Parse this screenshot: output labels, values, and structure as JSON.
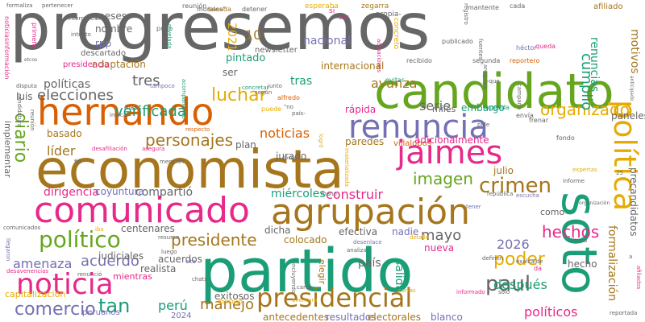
{
  "colors": {
    "green": "#1b9e77",
    "orange": "#d95f02",
    "purple": "#7570b3",
    "pink": "#e7298a",
    "lime": "#66a61e",
    "gold": "#e6ab02",
    "brown": "#a6761d",
    "gray": "#666666"
  },
  "words": [
    {
      "id": "w1",
      "text": "progresemos",
      "color": "gray"
    },
    {
      "id": "w2",
      "text": "economista",
      "color": "brown"
    },
    {
      "id": "w3",
      "text": "partido",
      "color": "green"
    },
    {
      "id": "w4",
      "text": "candidato",
      "color": "lime"
    },
    {
      "id": "w5",
      "text": "soto",
      "color": "green"
    },
    {
      "id": "w6",
      "text": "hernando",
      "color": "orange"
    },
    {
      "id": "w7",
      "text": "comunicado",
      "color": "pink"
    },
    {
      "id": "w8",
      "text": "agrupación",
      "color": "brown"
    },
    {
      "id": "w9",
      "text": "noticia",
      "color": "pink"
    },
    {
      "id": "w10",
      "text": "renuncia",
      "color": "purple"
    },
    {
      "id": "w11",
      "text": "político",
      "color": "lime"
    },
    {
      "id": "w12",
      "text": "presidencial",
      "color": "brown"
    },
    {
      "id": "w13",
      "text": "jaimes",
      "color": "pink"
    },
    {
      "id": "w14",
      "text": "política",
      "color": "gold"
    },
    {
      "id": "w15",
      "text": "personajes",
      "color": "brown"
    },
    {
      "id": "w16",
      "text": "elecciones",
      "color": "gray"
    },
    {
      "id": "w17",
      "text": "luchar",
      "color": "gold"
    },
    {
      "id": "w18",
      "text": "diario",
      "color": "lime"
    },
    {
      "id": "w19",
      "text": "organizado",
      "color": "gold"
    },
    {
      "id": "w20",
      "text": "crimen",
      "color": "brown"
    },
    {
      "id": "w21",
      "text": "imagen",
      "color": "lime"
    },
    {
      "id": "w22",
      "text": "comercio",
      "color": "purple"
    },
    {
      "id": "w23",
      "text": "paul",
      "color": "gray"
    },
    {
      "id": "w24",
      "text": "presidente",
      "color": "brown"
    },
    {
      "id": "w25",
      "text": "poder",
      "color": "gold"
    },
    {
      "id": "w26",
      "text": "hechos",
      "color": "pink"
    },
    {
      "id": "w27",
      "text": "tan",
      "color": "green"
    },
    {
      "id": "w28",
      "text": "perú",
      "color": "green"
    },
    {
      "id": "w29",
      "text": "acuerdo",
      "color": "purple"
    },
    {
      "id": "w30",
      "text": "amenaza",
      "color": "purple"
    },
    {
      "id": "w31",
      "text": "verificada",
      "color": "green"
    },
    {
      "id": "w32",
      "text": "noticias",
      "color": "orange"
    },
    {
      "id": "w33",
      "text": "2026",
      "color": "purple"
    },
    {
      "id": "w34",
      "text": "después",
      "color": "green"
    },
    {
      "id": "w35",
      "text": "políticos",
      "color": "pink"
    },
    {
      "id": "w36",
      "text": "manejo",
      "color": "brown"
    },
    {
      "id": "w37",
      "text": "mayo",
      "color": "gray"
    },
    {
      "id": "w38",
      "text": "dirigencia",
      "color": "pink"
    },
    {
      "id": "w39",
      "text": "construir",
      "color": "pink"
    },
    {
      "id": "w40",
      "text": "miércoles",
      "color": "green"
    },
    {
      "id": "w41",
      "text": "líder",
      "color": "brown"
    },
    {
      "id": "w42",
      "text": "serie",
      "color": "gray"
    },
    {
      "id": "w43",
      "text": "nacional",
      "color": "purple"
    },
    {
      "id": "w44",
      "text": "internacional",
      "color": "brown"
    },
    {
      "id": "w45",
      "text": "avanza",
      "color": "brown"
    },
    {
      "id": "w46",
      "text": "cumplió",
      "color": "green"
    },
    {
      "id": "w47",
      "text": "tres",
      "color": "gray"
    },
    {
      "id": "w48",
      "text": "tras",
      "color": "green"
    },
    {
      "id": "w49",
      "text": "salida",
      "color": "green"
    },
    {
      "id": "w50",
      "text": "país",
      "color": "gray"
    },
    {
      "id": "w51",
      "text": "formalización",
      "color": "brown"
    },
    {
      "id": "w52",
      "text": "precandidatos",
      "color": "gray"
    },
    {
      "id": "w53",
      "text": "renuncias",
      "color": "green"
    },
    {
      "id": "w54",
      "text": "motivos",
      "color": "brown"
    },
    {
      "id": "w55",
      "text": "compartió",
      "color": "gray"
    },
    {
      "id": "w56",
      "text": "coyuntura",
      "color": "purple"
    },
    {
      "id": "w57",
      "text": "jurado",
      "color": "gray"
    },
    {
      "id": "w58",
      "text": "paredes",
      "color": "brown"
    },
    {
      "id": "w59",
      "text": "villalobos",
      "color": "orange"
    },
    {
      "id": "w60",
      "text": "adicionalmente",
      "color": "pink"
    },
    {
      "id": "w61",
      "text": "embargo",
      "color": "green"
    },
    {
      "id": "w62",
      "text": "miles",
      "color": "gray"
    },
    {
      "id": "w63",
      "text": "rápida",
      "color": "pink"
    },
    {
      "id": "w64",
      "text": "plan",
      "color": "gray"
    },
    {
      "id": "w65",
      "text": "pintado",
      "color": "green"
    },
    {
      "id": "w66",
      "text": "ser",
      "color": "gray"
    },
    {
      "id": "w67",
      "text": "políticas",
      "color": "gray"
    },
    {
      "id": "w68",
      "text": "adaptación",
      "color": "brown"
    },
    {
      "id": "w69",
      "text": "luis",
      "color": "gray"
    },
    {
      "id": "w70",
      "text": "efectiva",
      "color": "gray"
    },
    {
      "id": "w71",
      "text": "nadie",
      "color": "purple"
    },
    {
      "id": "w72",
      "text": "colocado",
      "color": "brown"
    },
    {
      "id": "w73",
      "text": "dicha",
      "color": "gray"
    },
    {
      "id": "w74",
      "text": "centenares",
      "color": "gray"
    },
    {
      "id": "w75",
      "text": "exitosos",
      "color": "gray"
    },
    {
      "id": "w76",
      "text": "antecedentes",
      "color": "brown"
    },
    {
      "id": "w77",
      "text": "resultados",
      "color": "purple"
    },
    {
      "id": "w78",
      "text": "electorales",
      "color": "brown"
    },
    {
      "id": "w79",
      "text": "blanco",
      "color": "purple"
    },
    {
      "id": "w80",
      "text": "julio",
      "color": "brown"
    },
    {
      "id": "w81",
      "text": "nueva",
      "color": "pink"
    },
    {
      "id": "w82",
      "text": "elegir",
      "color": "brown"
    },
    {
      "id": "w83",
      "text": "hecho",
      "color": "gray"
    },
    {
      "id": "w84",
      "text": "como",
      "color": "gray"
    },
    {
      "id": "w85",
      "text": "paneles",
      "color": "gray"
    },
    {
      "id": "w86",
      "text": "judiciales",
      "color": "gray"
    },
    {
      "id": "w87",
      "text": "acuerdos",
      "color": "gray"
    },
    {
      "id": "w88",
      "text": "realista",
      "color": "gray"
    },
    {
      "id": "w89",
      "text": "mientras",
      "color": "pink"
    },
    {
      "id": "w90",
      "text": "capitalización",
      "color": "gold"
    },
    {
      "id": "w91",
      "text": "peruanos",
      "color": "purple"
    },
    {
      "id": "w92",
      "text": "2024",
      "color": "purple"
    },
    {
      "id": "w93",
      "text": "2021",
      "color": "gold"
    },
    {
      "id": "w94",
      "text": "10",
      "color": "brown"
    },
    {
      "id": "w95",
      "text": "newsletter",
      "color": "gray"
    },
    {
      "id": "w96",
      "text": "nombre",
      "color": "gray"
    },
    {
      "id": "w97",
      "text": "rpp",
      "color": "purple"
    },
    {
      "id": "w98",
      "text": "meses",
      "color": "gray"
    },
    {
      "id": "w99",
      "text": "presidencia",
      "color": "pink"
    },
    {
      "id": "w100",
      "text": "descartado",
      "color": "gray"
    },
    {
      "id": "w101",
      "text": "basado",
      "color": "brown"
    },
    {
      "id": "w102",
      "text": "implementar",
      "color": "gray"
    },
    {
      "id": "w103",
      "text": "pudo",
      "color": "gray"
    },
    {
      "id": "w104",
      "text": "reunión",
      "color": "gray"
    },
    {
      "id": "w105",
      "text": "morales\"",
      "color": "gray"
    },
    {
      "id": "w106",
      "text": "basada",
      "color": "brown"
    },
    {
      "id": "w107",
      "text": "detener",
      "color": "gray"
    },
    {
      "id": "w108",
      "text": "esperaba",
      "color": "gold"
    },
    {
      "id": "w109",
      "text": "zegarra",
      "color": "brown"
    },
    {
      "id": "w110",
      "text": "propia-",
      "color": "gray"
    },
    {
      "id": "w111",
      "text": "mantente",
      "color": "gray"
    },
    {
      "id": "w112",
      "text": "cada",
      "color": "gray"
    },
    {
      "id": "w113",
      "text": "afiliado",
      "color": "brown"
    },
    {
      "id": "w114",
      "text": "concreto",
      "color": "gold"
    },
    {
      "id": "w115",
      "text": "publicado",
      "color": "gray"
    },
    {
      "id": "w116",
      "text": "recibido",
      "color": "gray"
    },
    {
      "id": "w117",
      "text": "segunda",
      "color": "gray"
    },
    {
      "id": "w118",
      "text": "reportero",
      "color": "orange"
    },
    {
      "id": "w119",
      "text": "héctor",
      "color": "purple"
    },
    {
      "id": "w120",
      "text": "queda",
      "color": "pink"
    },
    {
      "id": "w121",
      "text": "evitar",
      "color": "green"
    },
    {
      "id": "w122",
      "text": "agenda",
      "color": "green"
    },
    {
      "id": "w123",
      "text": "envía",
      "color": "gray"
    },
    {
      "id": "w124",
      "text": "frenar",
      "color": "gray"
    },
    {
      "id": "w125",
      "text": "fondo",
      "color": "gray"
    },
    {
      "id": "w126",
      "text": "informe",
      "color": "gray"
    },
    {
      "id": "w127",
      "text": "expertas",
      "color": "gold"
    },
    {
      "id": "w128",
      "text": "república",
      "color": "gray"
    },
    {
      "id": "w129",
      "text": "escucha",
      "color": "purple"
    },
    {
      "id": "w130",
      "text": "tener",
      "color": "purple"
    },
    {
      "id": "w131",
      "text": "mano",
      "color": "gray"
    },
    {
      "id": "w132",
      "text": "desenlace",
      "color": "purple"
    },
    {
      "id": "w133",
      "text": "analiza",
      "color": "gray"
    },
    {
      "id": "w134",
      "text": "detalle",
      "color": "gold"
    },
    {
      "id": "w135",
      "text": "definen",
      "color": "gray"
    },
    {
      "id": "w136",
      "text": "exalcalde",
      "color": "gray"
    },
    {
      "id": "w137",
      "text": "da",
      "color": "pink"
    },
    {
      "id": "w138",
      "text": "informado",
      "color": "pink"
    },
    {
      "id": "w139",
      "text": "solo",
      "color": "gray"
    },
    {
      "id": "w140",
      "text": "cartas",
      "color": "gold"
    },
    {
      "id": "w141",
      "text": "carta",
      "color": "gray"
    },
    {
      "id": "w142",
      "text": "aventura",
      "color": "gold"
    },
    {
      "id": "w143",
      "text": "domingo",
      "color": "gold"
    },
    {
      "id": "w144",
      "text": "chats",
      "color": "gray"
    },
    {
      "id": "w145",
      "text": "cita",
      "color": "purple"
    },
    {
      "id": "w146",
      "text": "luego",
      "color": "gray"
    },
    {
      "id": "w147",
      "text": "resume",
      "color": "gray"
    },
    {
      "id": "w148",
      "text": "renunció",
      "color": "gray"
    },
    {
      "id": "w149",
      "text": "llegaron",
      "color": "purple"
    },
    {
      "id": "w150",
      "text": "desavenencias",
      "color": "pink"
    },
    {
      "id": "w151",
      "text": "comunicados",
      "color": "gray"
    },
    {
      "id": "w152",
      "text": "iba",
      "color": "gold"
    },
    {
      "id": "w153",
      "text": "puede",
      "color": "gold"
    },
    {
      "id": "w154",
      "text": "alfredo",
      "color": "orange"
    },
    {
      "id": "w155",
      "text": "\"no",
      "color": "gray"
    },
    {
      "id": "w156",
      "text": "país-",
      "color": "gray"
    },
    {
      "id": "w157",
      "text": "logró",
      "color": "gold"
    },
    {
      "id": "w158",
      "text": "respecto",
      "color": "orange"
    },
    {
      "id": "w159",
      "text": "asegura",
      "color": "pink"
    },
    {
      "id": "w160",
      "text": "desafiliación",
      "color": "pink"
    },
    {
      "id": "w161",
      "text": "días",
      "color": "gray"
    },
    {
      "id": "w162",
      "text": "indica",
      "color": "gray"
    },
    {
      "id": "w163",
      "text": "concretar",
      "color": "green"
    },
    {
      "id": "w164",
      "text": "junto",
      "color": "gray"
    },
    {
      "id": "w165",
      "text": "según",
      "color": "gray"
    },
    {
      "id": "w166",
      "text": "acompañando",
      "color": "green"
    },
    {
      "id": "w167",
      "text": "tampoco",
      "color": "purple"
    },
    {
      "id": "w168",
      "text": "revelada",
      "color": "green"
    },
    {
      "id": "w169",
      "text": "interrupciones",
      "color": "gray"
    },
    {
      "id": "w170",
      "text": "intento",
      "color": "gray"
    },
    {
      "id": "w171",
      "text": "formaliza",
      "color": "gray"
    },
    {
      "id": "w172",
      "text": "pertenecer",
      "color": "gray"
    },
    {
      "id": "w173",
      "text": "noticiasinformación",
      "color": "pink"
    },
    {
      "id": "w174",
      "text": "primera",
      "color": "pink"
    },
    {
      "id": "w175",
      "text": "etcos",
      "color": "gray"
    },
    {
      "id": "w176",
      "text": "disputa",
      "color": "gray"
    },
    {
      "id": "w177",
      "text": "candidatura",
      "color": "gray"
    },
    {
      "id": "w178",
      "text": "reunión",
      "color": "gray"
    },
    {
      "id": "w179",
      "text": "fin",
      "color": "gray"
    },
    {
      "id": "w180",
      "text": "materializada",
      "color": "gold"
    },
    {
      "id": "w181",
      "text": "deseo",
      "color": "gray"
    },
    {
      "id": "w182",
      "text": "incluyendo",
      "color": "gray"
    },
    {
      "id": "w183",
      "text": "anticipado",
      "color": "gray"
    },
    {
      "id": "w184",
      "text": "afiliados",
      "color": "pink"
    },
    {
      "id": "w185",
      "text": "reportada",
      "color": "gray"
    },
    {
      "id": "w186",
      "text": "organización",
      "color": "gray"
    },
    {
      "id": "w187",
      "text": "última",
      "color": "gray"
    },
    {
      "id": "w188",
      "text": "campaña",
      "color": "gray"
    },
    {
      "id": "w189",
      "text": "arequipa",
      "color": "gray"
    },
    {
      "id": "w190",
      "text": "registro",
      "color": "gray"
    },
    {
      "id": "w191",
      "text": "fuentes",
      "color": "gray"
    },
    {
      "id": "w192",
      "text": "actuaciones",
      "color": "pink"
    },
    {
      "id": "w193",
      "text": "sur",
      "color": "pink"
    },
    {
      "id": "w194",
      "text": "si",
      "color": "pink"
    },
    {
      "id": "w195",
      "text": "-que",
      "color": "gray"
    },
    {
      "id": "w196",
      "text": "pide",
      "color": "gray"
    },
    {
      "id": "w197",
      "text": "mención",
      "color": "gray"
    },
    {
      "id": "w198",
      "text": "25",
      "color": "gray"
    },
    {
      "id": "w199",
      "text": "a",
      "color": "gray"
    }
  ]
}
